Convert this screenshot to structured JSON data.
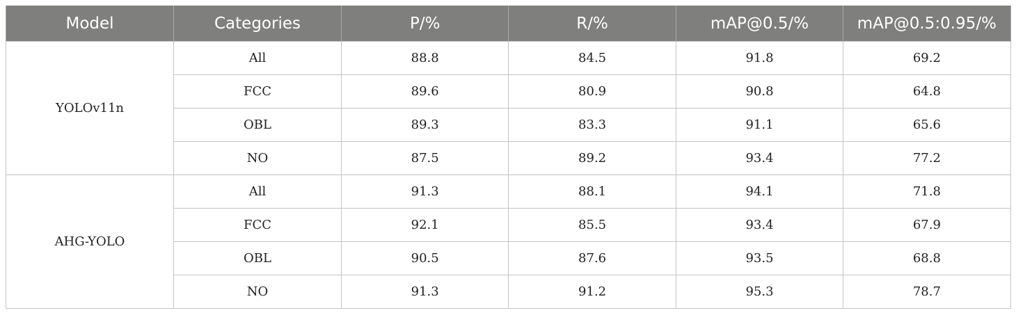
{
  "table": {
    "headers": [
      "Model",
      "Categories",
      "P/%",
      "R/%",
      "mAP@0.5/%",
      "mAP@0.5:0.95/%"
    ],
    "groups": [
      {
        "model": "YOLOv11n",
        "rows": [
          {
            "category": "All",
            "p": "88.8",
            "r": "84.5",
            "map50": "91.8",
            "map50_95": "69.2"
          },
          {
            "category": "FCC",
            "p": "89.6",
            "r": "80.9",
            "map50": "90.8",
            "map50_95": "64.8"
          },
          {
            "category": "OBL",
            "p": "89.3",
            "r": "83.3",
            "map50": "91.1",
            "map50_95": "65.6"
          },
          {
            "category": "NO",
            "p": "87.5",
            "r": "89.2",
            "map50": "93.4",
            "map50_95": "77.2"
          }
        ]
      },
      {
        "model": "AHG-YOLO",
        "rows": [
          {
            "category": "All",
            "p": "91.3",
            "r": "88.1",
            "map50": "94.1",
            "map50_95": "71.8"
          },
          {
            "category": "FCC",
            "p": "92.1",
            "r": "85.5",
            "map50": "93.4",
            "map50_95": "67.9"
          },
          {
            "category": "OBL",
            "p": "90.5",
            "r": "87.6",
            "map50": "93.5",
            "map50_95": "68.8"
          },
          {
            "category": "NO",
            "p": "91.3",
            "r": "91.2",
            "map50": "95.3",
            "map50_95": "78.7"
          }
        ]
      }
    ]
  }
}
